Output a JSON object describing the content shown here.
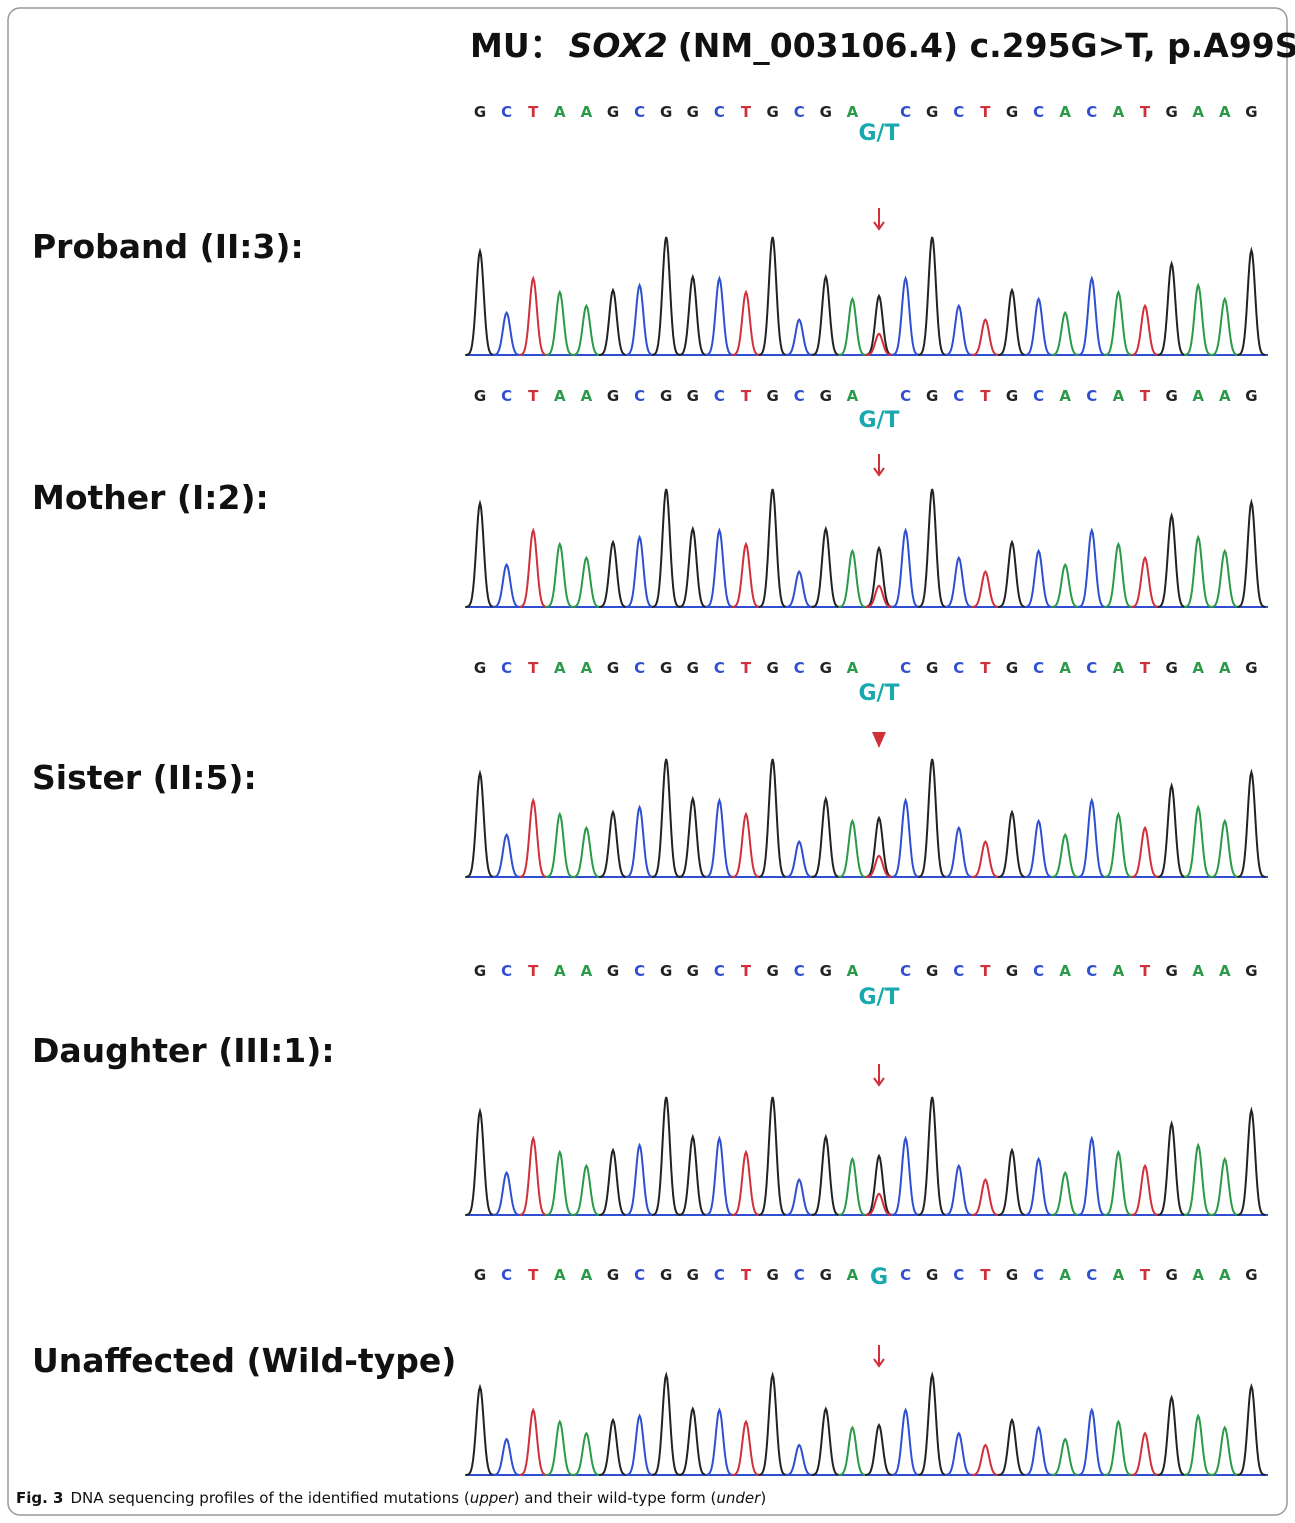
{
  "figure": {
    "title": {
      "prefix": "MU：",
      "gene": "SOX2",
      "detail": "(NM_003106.4) c.295G>T, p.A99S"
    },
    "panels": [
      {
        "label": "Proband (II:3):",
        "bases_before": [
          "G",
          "C",
          "T",
          "A",
          "A",
          "G",
          "C",
          "G",
          "G",
          "C",
          "T",
          "G",
          "C",
          "G",
          "A"
        ],
        "variant": "G/T",
        "bases_after": [
          "C",
          "G",
          "C",
          "T",
          "G",
          "C",
          "A",
          "C",
          "A",
          "T",
          "G",
          "A",
          "A",
          "G"
        ]
      },
      {
        "label": "Mother (I:2):",
        "bases_before": [
          "G",
          "C",
          "T",
          "A",
          "A",
          "G",
          "C",
          "G",
          "G",
          "C",
          "T",
          "G",
          "C",
          "G",
          "A"
        ],
        "variant": "G/T",
        "bases_after": [
          "C",
          "G",
          "C",
          "T",
          "G",
          "C",
          "A",
          "C",
          "A",
          "T",
          "G",
          "A",
          "A",
          "G"
        ]
      },
      {
        "label": "Sister (II:5):",
        "bases_before": [
          "G",
          "C",
          "T",
          "A",
          "A",
          "G",
          "C",
          "G",
          "G",
          "C",
          "T",
          "G",
          "C",
          "G",
          "A"
        ],
        "variant": "G/T",
        "bases_after": [
          "C",
          "G",
          "C",
          "T",
          "G",
          "C",
          "A",
          "C",
          "A",
          "T",
          "G",
          "A",
          "A",
          "G"
        ]
      },
      {
        "label": "Daughter (III:1):",
        "bases_before": [
          "G",
          "C",
          "T",
          "A",
          "A",
          "G",
          "C",
          "G",
          "G",
          "C",
          "T",
          "G",
          "C",
          "G",
          "A"
        ],
        "variant": "G/T",
        "bases_after": [
          "C",
          "G",
          "C",
          "T",
          "G",
          "C",
          "A",
          "C",
          "A",
          "T",
          "G",
          "A",
          "A",
          "G"
        ]
      },
      {
        "label": "Unaffected (Wild-type)",
        "bases_before": [
          "G",
          "C",
          "T",
          "A",
          "A",
          "G",
          "C",
          "G",
          "G",
          "C",
          "T",
          "G",
          "C",
          "G",
          "A"
        ],
        "variant": "G",
        "bases_after": [
          "C",
          "G",
          "C",
          "T",
          "G",
          "C",
          "A",
          "C",
          "A",
          "T",
          "G",
          "A",
          "A",
          "G"
        ]
      }
    ],
    "caption": {
      "label": "Fig. 3",
      "parts": [
        "DNA sequencing profiles of the identified mutations (",
        "upper",
        ") and their wild-type form (",
        "under",
        ")"
      ]
    }
  }
}
